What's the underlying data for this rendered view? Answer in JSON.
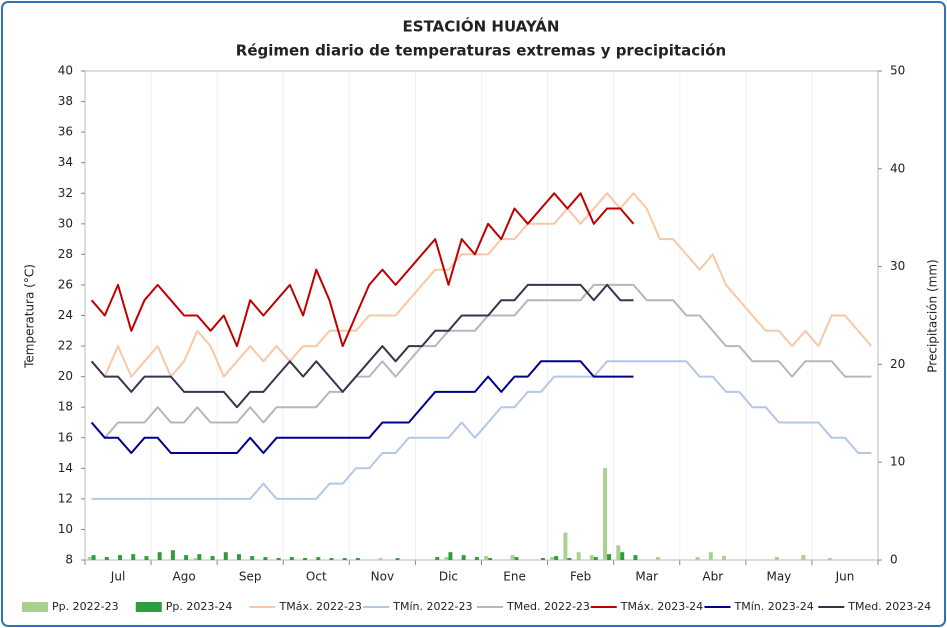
{
  "chart_data": {
    "type": "line",
    "title": "ESTACIÓN HUAYÁN",
    "subtitle": "Régimen diario de temperaturas extremas y precipitación",
    "y_label": "Temperatura (°C)",
    "y2_label": "Precipitación (mm)",
    "categories": [
      null,
      null,
      "Jul",
      null,
      null,
      null,
      null,
      "Ago",
      null,
      null,
      null,
      null,
      "Sep",
      null,
      null,
      null,
      null,
      "Oct",
      null,
      null,
      null,
      null,
      "Nov",
      null,
      null,
      null,
      null,
      "Dic",
      null,
      null,
      null,
      null,
      "Ene",
      null,
      null,
      null,
      null,
      "Feb",
      null,
      null,
      null,
      null,
      "Mar",
      null,
      null,
      null,
      null,
      "Abr",
      null,
      null,
      null,
      null,
      "May",
      null,
      null,
      null,
      null,
      "Jun",
      null,
      null
    ],
    "ylim": [
      8,
      40
    ],
    "yticks": [
      8,
      10,
      12,
      14,
      16,
      18,
      20,
      22,
      24,
      26,
      28,
      30,
      32,
      34,
      36,
      38,
      40
    ],
    "y2lim": [
      0,
      50
    ],
    "y2ticks": [
      0,
      10,
      20,
      30,
      40,
      50
    ],
    "legend": "bottom",
    "series": [
      {
        "name": "Pp. 2022-23",
        "kind": "bar",
        "axis": "y2",
        "color": "#a9d18e",
        "values": [
          0.3,
          0,
          0,
          0,
          0,
          0,
          0,
          0,
          0.2,
          0,
          0,
          0,
          0,
          0,
          0,
          0,
          0,
          0,
          0,
          0,
          0,
          0,
          0.2,
          0,
          0,
          0,
          0,
          0.3,
          0,
          0,
          0.4,
          0,
          0.5,
          0,
          0,
          0.3,
          2.8,
          0.8,
          0.5,
          9.4,
          1.5,
          0,
          0,
          0.3,
          0,
          0,
          0.3,
          0.8,
          0.4,
          0,
          0,
          0,
          0.3,
          0,
          0.5,
          0,
          0.2,
          0,
          0,
          0
        ]
      },
      {
        "name": "Pp. 2023-24",
        "kind": "bar",
        "axis": "y2",
        "color": "#2e9e3a",
        "values": [
          0.5,
          0.3,
          0.5,
          0.6,
          0.4,
          0.8,
          1,
          0.5,
          0.6,
          0.4,
          0.8,
          0.6,
          0.4,
          0.3,
          0.2,
          0.3,
          0.2,
          0.3,
          0.2,
          0.2,
          0.2,
          0,
          0,
          0.2,
          0,
          0,
          0.3,
          0.8,
          0.5,
          0.3,
          0.2,
          0,
          0.3,
          0,
          0.2,
          0.4,
          0.2,
          0,
          0.3,
          0.6,
          0.8,
          0.5,
          null,
          null,
          null,
          null,
          null,
          null,
          null,
          null,
          null,
          null,
          null,
          null,
          null,
          null,
          null,
          null,
          null,
          null
        ]
      },
      {
        "name": "TMáx. 2022-23",
        "kind": "line",
        "color": "#f7c8a5",
        "values": [
          21,
          20,
          22,
          20,
          21,
          22,
          20,
          21,
          23,
          22,
          20,
          21,
          22,
          21,
          22,
          21,
          22,
          22,
          23,
          23,
          23,
          24,
          24,
          24,
          25,
          26,
          27,
          27,
          28,
          28,
          28,
          29,
          29,
          30,
          30,
          30,
          31,
          30,
          31,
          32,
          31,
          32,
          31,
          29,
          29,
          28,
          27,
          28,
          26,
          25,
          24,
          23,
          23,
          22,
          23,
          22,
          24,
          24,
          23,
          22
        ]
      },
      {
        "name": "TMín. 2022-23",
        "kind": "line",
        "color": "#b4c7e7",
        "values": [
          12,
          12,
          12,
          12,
          12,
          12,
          12,
          12,
          12,
          12,
          12,
          12,
          12,
          13,
          12,
          12,
          12,
          12,
          13,
          13,
          14,
          14,
          15,
          15,
          16,
          16,
          16,
          16,
          17,
          16,
          17,
          18,
          18,
          19,
          19,
          20,
          20,
          20,
          20,
          21,
          21,
          21,
          21,
          21,
          21,
          21,
          20,
          20,
          19,
          19,
          18,
          18,
          17,
          17,
          17,
          17,
          16,
          16,
          15,
          15
        ]
      },
      {
        "name": "TMed. 2022-23",
        "kind": "line",
        "color": "#b7b7b7",
        "values": [
          17,
          16,
          17,
          17,
          17,
          18,
          17,
          17,
          18,
          17,
          17,
          17,
          18,
          17,
          18,
          18,
          18,
          18,
          19,
          19,
          20,
          20,
          21,
          20,
          21,
          22,
          22,
          23,
          23,
          23,
          24,
          24,
          24,
          25,
          25,
          25,
          25,
          25,
          26,
          26,
          26,
          26,
          25,
          25,
          25,
          24,
          24,
          23,
          22,
          22,
          21,
          21,
          21,
          20,
          21,
          21,
          21,
          20,
          20,
          20
        ]
      },
      {
        "name": "TMáx. 2023-24",
        "kind": "line",
        "color": "#c00000",
        "values": [
          25,
          24,
          26,
          23,
          25,
          26,
          25,
          24,
          24,
          23,
          24,
          22,
          25,
          24,
          25,
          26,
          24,
          27,
          25,
          22,
          24,
          26,
          27,
          26,
          27,
          28,
          29,
          26,
          29,
          28,
          30,
          29,
          31,
          30,
          31,
          32,
          31,
          32,
          30,
          31,
          31,
          30,
          null,
          null,
          null,
          null,
          null,
          null,
          null,
          null,
          null,
          null,
          null,
          null,
          null,
          null,
          null,
          null,
          null,
          null
        ]
      },
      {
        "name": "TMín. 2023-24",
        "kind": "line",
        "color": "#00008b",
        "values": [
          17,
          16,
          16,
          15,
          16,
          16,
          15,
          15,
          15,
          15,
          15,
          15,
          16,
          15,
          16,
          16,
          16,
          16,
          16,
          16,
          16,
          16,
          17,
          17,
          17,
          18,
          19,
          19,
          19,
          19,
          20,
          19,
          20,
          20,
          21,
          21,
          21,
          21,
          20,
          20,
          20,
          20,
          null,
          null,
          null,
          null,
          null,
          null,
          null,
          null,
          null,
          null,
          null,
          null,
          null,
          null,
          null,
          null,
          null,
          null
        ]
      },
      {
        "name": "TMed. 2023-24",
        "kind": "line",
        "color": "#3b3250",
        "values": [
          21,
          20,
          20,
          19,
          20,
          20,
          20,
          19,
          19,
          19,
          19,
          18,
          19,
          19,
          20,
          21,
          20,
          21,
          20,
          19,
          20,
          21,
          22,
          21,
          22,
          22,
          23,
          23,
          24,
          24,
          24,
          25,
          25,
          26,
          26,
          26,
          26,
          26,
          25,
          26,
          25,
          25,
          null,
          null,
          null,
          null,
          null,
          null,
          null,
          null,
          null,
          null,
          null,
          null,
          null,
          null,
          null,
          null,
          null,
          null
        ]
      }
    ]
  }
}
